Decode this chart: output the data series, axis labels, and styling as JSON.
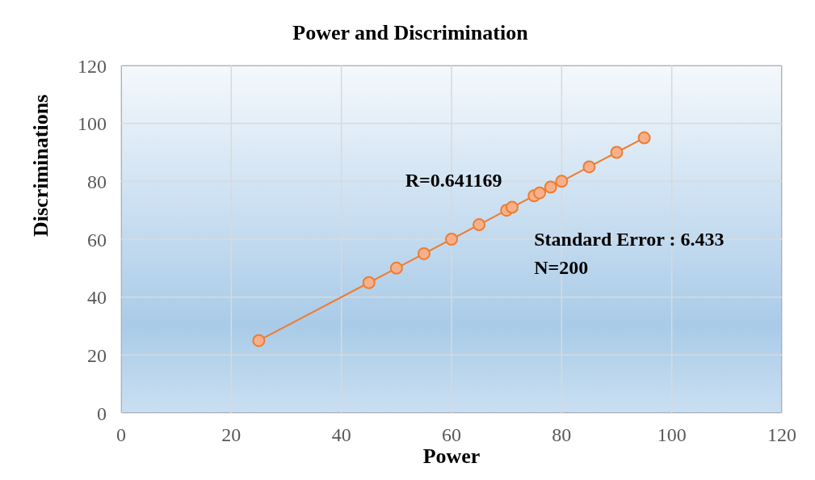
{
  "chart_data": {
    "type": "line",
    "title": "Power and Discrimination",
    "xlabel": "Power",
    "ylabel": "Discriminations",
    "x": [
      25,
      45,
      50,
      55,
      60,
      65,
      70,
      71,
      75,
      76,
      78,
      80,
      85,
      90,
      95
    ],
    "series": [
      {
        "color": "#ed7d31",
        "values": [
          25,
          45,
          50,
          55,
          60,
          65,
          70,
          71,
          75,
          76,
          78,
          80,
          85,
          90,
          95
        ]
      }
    ],
    "xlim": [
      0,
      120
    ],
    "xticks": [
      0,
      20,
      40,
      60,
      80,
      100,
      120
    ],
    "ylim": [
      0,
      120
    ],
    "yticks": [
      0,
      20,
      40,
      60,
      80,
      100,
      120
    ],
    "grid": true,
    "legend": false,
    "marker": "circle",
    "line_style": "solid",
    "annotations": [
      "R=0.641169",
      "Standard Error : 6.433",
      "N=200"
    ]
  }
}
